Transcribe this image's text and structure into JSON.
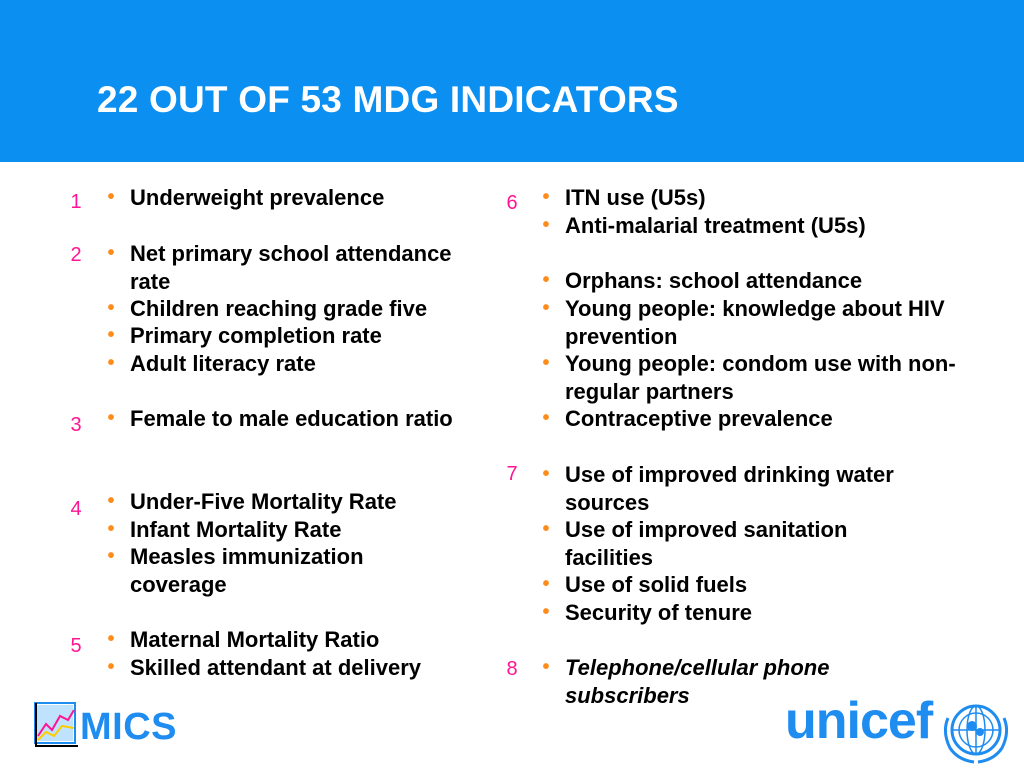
{
  "slide": {
    "title": "22 OUT OF 53 MDG INDICATORS",
    "colors": {
      "banner": "#0b8ff0",
      "title": "#ffffff",
      "goal_number": "#ff1493",
      "bullet": "#ff8c1a",
      "brand_blue": "#1f8cf0"
    }
  },
  "left_goals": {
    "g1": "1",
    "g2": "2",
    "g3": "3",
    "g4": "4",
    "g5": "5"
  },
  "left_items": [
    "Underweight prevalence",
    "Net primary school attendance rate",
    "Children reaching grade five",
    "Primary completion rate",
    "Adult literacy rate",
    "Female to male education ratio",
    "Under-Five Mortality Rate",
    "Infant Mortality Rate",
    "Measles immunization coverage",
    "Maternal Mortality Ratio",
    "Skilled attendant at delivery"
  ],
  "right_goals": {
    "g6": "6",
    "g7": "7",
    "g8": "8"
  },
  "right_items": [
    "ITN use (U5s)",
    "Anti-malarial treatment (U5s)",
    "Orphans: school attendance",
    "Young people: knowledge about HIV prevention",
    "Young people: condom use with non-regular partners",
    "Contraceptive prevalence",
    "Use of improved drinking water sources",
    "Use of improved sanitation facilities",
    "Use of solid fuels",
    "Security of tenure",
    "Telephone/cellular phone subscribers"
  ],
  "logos": {
    "mics": "MICS",
    "mics_icon": "chart-icon",
    "unicef": "unicef",
    "unicef_icon": "globe-emblem-icon"
  }
}
